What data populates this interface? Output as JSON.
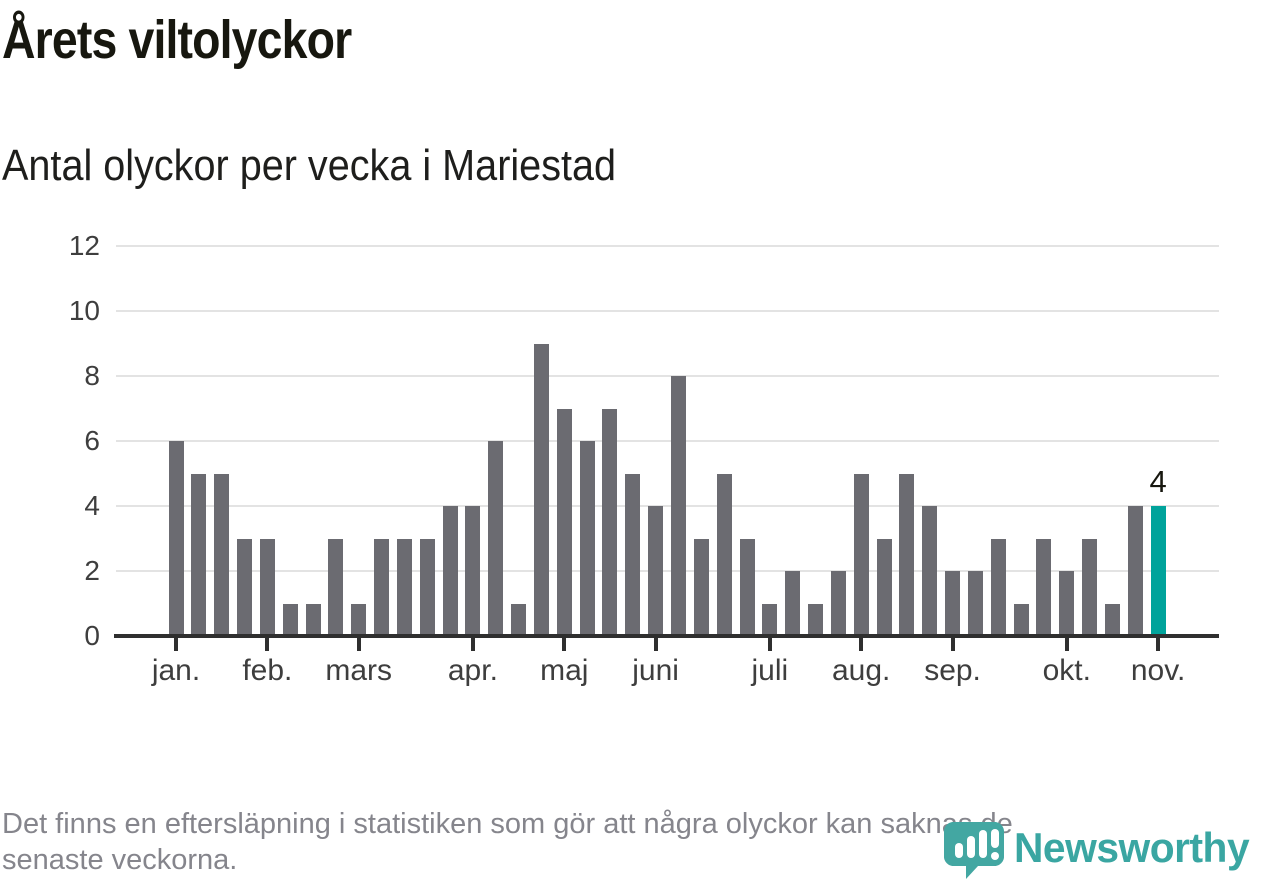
{
  "header": {
    "title": "Årets viltolyckor",
    "subtitle": "Antal olyckor per vecka i Mariestad"
  },
  "chart_data": {
    "type": "bar",
    "title": "Årets viltolyckor",
    "subtitle": "Antal olyckor per vecka i Mariestad",
    "x_unit": "vecka",
    "values": [
      6,
      5,
      5,
      3,
      3,
      1,
      1,
      3,
      1,
      3,
      3,
      3,
      4,
      4,
      6,
      1,
      9,
      7,
      6,
      7,
      5,
      4,
      8,
      3,
      5,
      3,
      1,
      2,
      1,
      2,
      5,
      3,
      5,
      4,
      2,
      2,
      3,
      1,
      3,
      2,
      3,
      1,
      4,
      4
    ],
    "highlight": {
      "index": 43,
      "label": "4"
    },
    "month_ticks": [
      {
        "label": "jan.",
        "index": 0
      },
      {
        "label": "feb.",
        "index": 4
      },
      {
        "label": "mars",
        "index": 8
      },
      {
        "label": "apr.",
        "index": 13
      },
      {
        "label": "maj",
        "index": 17
      },
      {
        "label": "juni",
        "index": 21
      },
      {
        "label": "juli",
        "index": 26
      },
      {
        "label": "aug.",
        "index": 30
      },
      {
        "label": "sep.",
        "index": 34
      },
      {
        "label": "okt.",
        "index": 39
      },
      {
        "label": "nov.",
        "index": 43
      }
    ],
    "yticks": [
      0,
      2,
      4,
      6,
      8,
      10,
      12
    ],
    "ylim": [
      0,
      12
    ],
    "grid": true,
    "legend": "none"
  },
  "footer": {
    "note_lines": [
      "Det finns en eftersläpning i statistiken som gör att några olyckor kan saknas de",
      "senaste veckorna."
    ],
    "logo_text": "Newsworthy"
  },
  "colors": {
    "bar": "#6b6b71",
    "highlight": "#00a39b",
    "gridline": "#e3e3e3",
    "axis": "#2f2f2f",
    "tick_label": "#3e3e3e",
    "title": "#17170f",
    "note": "#85858c",
    "logo": "#3aa6a2"
  }
}
